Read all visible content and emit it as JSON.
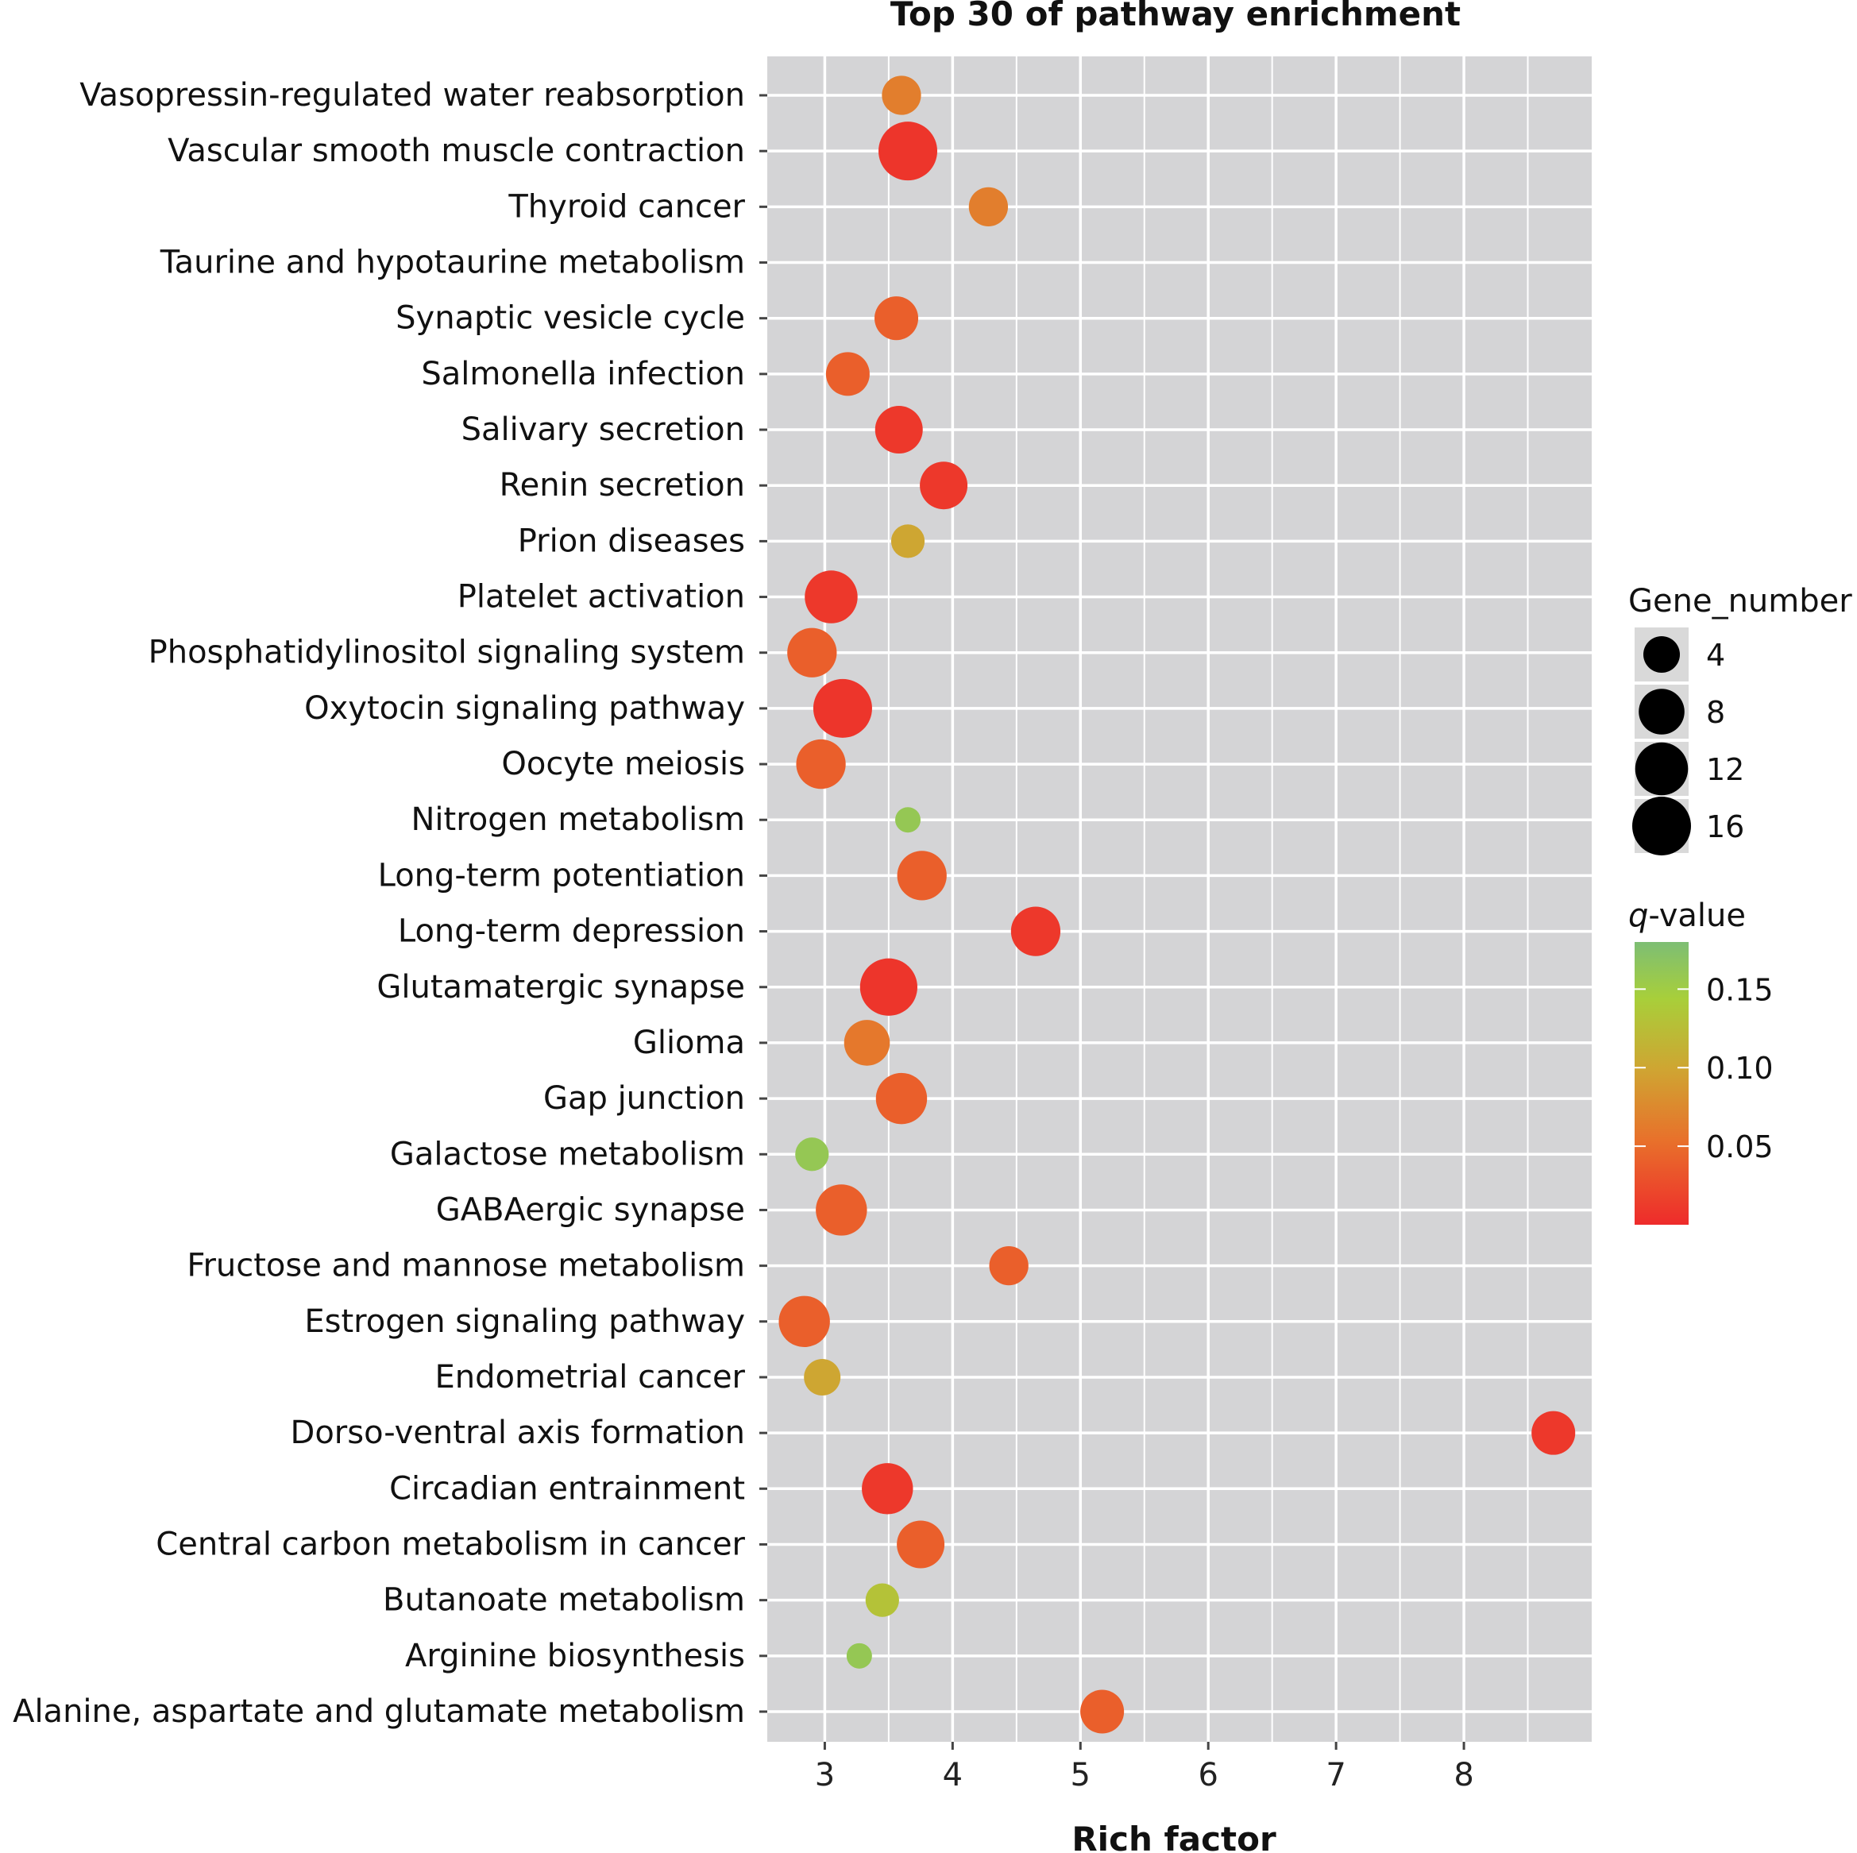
{
  "chart_data": {
    "type": "scatter",
    "title": "Top 30 of pathway enrichment",
    "xlabel": "Rich factor",
    "ylabel": "",
    "xlim": [
      2.55,
      9.0
    ],
    "x_ticks": [
      3,
      4,
      5,
      6,
      7,
      8
    ],
    "grid": true,
    "categories": [
      "Vasopressin-regulated water reabsorption",
      "Vascular smooth muscle contraction",
      "Thyroid cancer",
      "Taurine and hypotaurine metabolism",
      "Synaptic vesicle cycle",
      "Salmonella infection",
      "Salivary secretion",
      "Renin secretion",
      "Prion diseases",
      "Platelet activation",
      "Phosphatidylinositol signaling system",
      "Oxytocin signaling pathway",
      "Oocyte meiosis",
      "Nitrogen metabolism",
      "Long-term potentiation",
      "Long-term depression",
      "Glutamatergic synapse",
      "Glioma",
      "Gap junction",
      "Galactose metabolism",
      "GABAergic synapse",
      "Fructose and mannose metabolism",
      "Estrogen signaling pathway",
      "Endometrial cancer",
      "Dorso-ventral axis formation",
      "Circadian entrainment",
      "Central carbon metabolism in cancer",
      "Butanoate metabolism",
      "Arginine biosynthesis",
      "Alanine, aspartate and glutamate metabolism"
    ],
    "points": [
      {
        "pathway": "Vasopressin-regulated water reabsorption",
        "rich_factor": 3.6,
        "gene_number": 5,
        "q_value": 0.065
      },
      {
        "pathway": "Vascular smooth muscle contraction",
        "rich_factor": 3.65,
        "gene_number": 16,
        "q_value": 0.008
      },
      {
        "pathway": "Thyroid cancer",
        "rich_factor": 4.28,
        "gene_number": 5,
        "q_value": 0.065
      },
      {
        "pathway": "Taurine and hypotaurine metabolism",
        "rich_factor": null,
        "gene_number": null,
        "q_value": null
      },
      {
        "pathway": "Synaptic vesicle cycle",
        "rich_factor": 3.56,
        "gene_number": 7,
        "q_value": 0.04
      },
      {
        "pathway": "Salmonella infection",
        "rich_factor": 3.18,
        "gene_number": 7,
        "q_value": 0.04
      },
      {
        "pathway": "Salivary secretion",
        "rich_factor": 3.58,
        "gene_number": 9,
        "q_value": 0.01
      },
      {
        "pathway": "Renin secretion",
        "rich_factor": 3.93,
        "gene_number": 9,
        "q_value": 0.01
      },
      {
        "pathway": "Prion diseases",
        "rich_factor": 3.65,
        "gene_number": 3,
        "q_value": 0.1
      },
      {
        "pathway": "Platelet activation",
        "rich_factor": 3.05,
        "gene_number": 12,
        "q_value": 0.01
      },
      {
        "pathway": "Phosphatidylinositol signaling system",
        "rich_factor": 2.9,
        "gene_number": 10,
        "q_value": 0.04
      },
      {
        "pathway": "Oxytocin signaling pathway",
        "rich_factor": 3.14,
        "gene_number": 16,
        "q_value": 0.008
      },
      {
        "pathway": "Oocyte meiosis",
        "rich_factor": 2.97,
        "gene_number": 10,
        "q_value": 0.04
      },
      {
        "pathway": "Nitrogen metabolism",
        "rich_factor": 3.65,
        "gene_number": 1,
        "q_value": 0.16
      },
      {
        "pathway": "Long-term potentiation",
        "rich_factor": 3.76,
        "gene_number": 10,
        "q_value": 0.04
      },
      {
        "pathway": "Long-term depression",
        "rich_factor": 4.65,
        "gene_number": 10,
        "q_value": 0.01
      },
      {
        "pathway": "Glutamatergic synapse",
        "rich_factor": 3.5,
        "gene_number": 15,
        "q_value": 0.008
      },
      {
        "pathway": "Glioma",
        "rich_factor": 3.33,
        "gene_number": 8,
        "q_value": 0.06
      },
      {
        "pathway": "Gap junction",
        "rich_factor": 3.6,
        "gene_number": 11,
        "q_value": 0.04
      },
      {
        "pathway": "Galactose metabolism",
        "rich_factor": 2.9,
        "gene_number": 3,
        "q_value": 0.16
      },
      {
        "pathway": "GABAergic synapse",
        "rich_factor": 3.13,
        "gene_number": 11,
        "q_value": 0.04
      },
      {
        "pathway": "Fructose and mannose metabolism",
        "rich_factor": 4.44,
        "gene_number": 5,
        "q_value": 0.04
      },
      {
        "pathway": "Estrogen signaling pathway",
        "rich_factor": 2.84,
        "gene_number": 11,
        "q_value": 0.04
      },
      {
        "pathway": "Endometrial cancer",
        "rich_factor": 2.98,
        "gene_number": 4,
        "q_value": 0.1
      },
      {
        "pathway": "Dorso-ventral axis formation",
        "rich_factor": 8.7,
        "gene_number": 7,
        "q_value": 0.01
      },
      {
        "pathway": "Circadian entrainment",
        "rich_factor": 3.49,
        "gene_number": 11,
        "q_value": 0.01
      },
      {
        "pathway": "Central carbon metabolism in cancer",
        "rich_factor": 3.75,
        "gene_number": 9,
        "q_value": 0.04
      },
      {
        "pathway": "Butanoate metabolism",
        "rich_factor": 3.45,
        "gene_number": 3,
        "q_value": 0.13
      },
      {
        "pathway": "Arginine biosynthesis",
        "rich_factor": 3.27,
        "gene_number": 1,
        "q_value": 0.16
      },
      {
        "pathway": "Alanine, aspartate and glutamate metabolism",
        "rich_factor": 5.17,
        "gene_number": 7,
        "q_value": 0.04
      }
    ],
    "size_legend": {
      "title": "Gene_number",
      "values": [
        4,
        8,
        12,
        16
      ]
    },
    "color_legend": {
      "title_italic": "q",
      "title_rest": "-value",
      "ticks": [
        0.15,
        0.1,
        0.05
      ],
      "tick_labels": [
        "0.15",
        "0.10",
        "0.05"
      ],
      "range": [
        0.0,
        0.18
      ],
      "colors": {
        "low": "#ee2b2b",
        "mid_low": "#e8712b",
        "mid": "#cfa532",
        "mid_high": "#a8cf3a",
        "high": "#7dbe74"
      }
    },
    "panel_background": "#d4d4d6",
    "grid_color": "#ffffff"
  }
}
